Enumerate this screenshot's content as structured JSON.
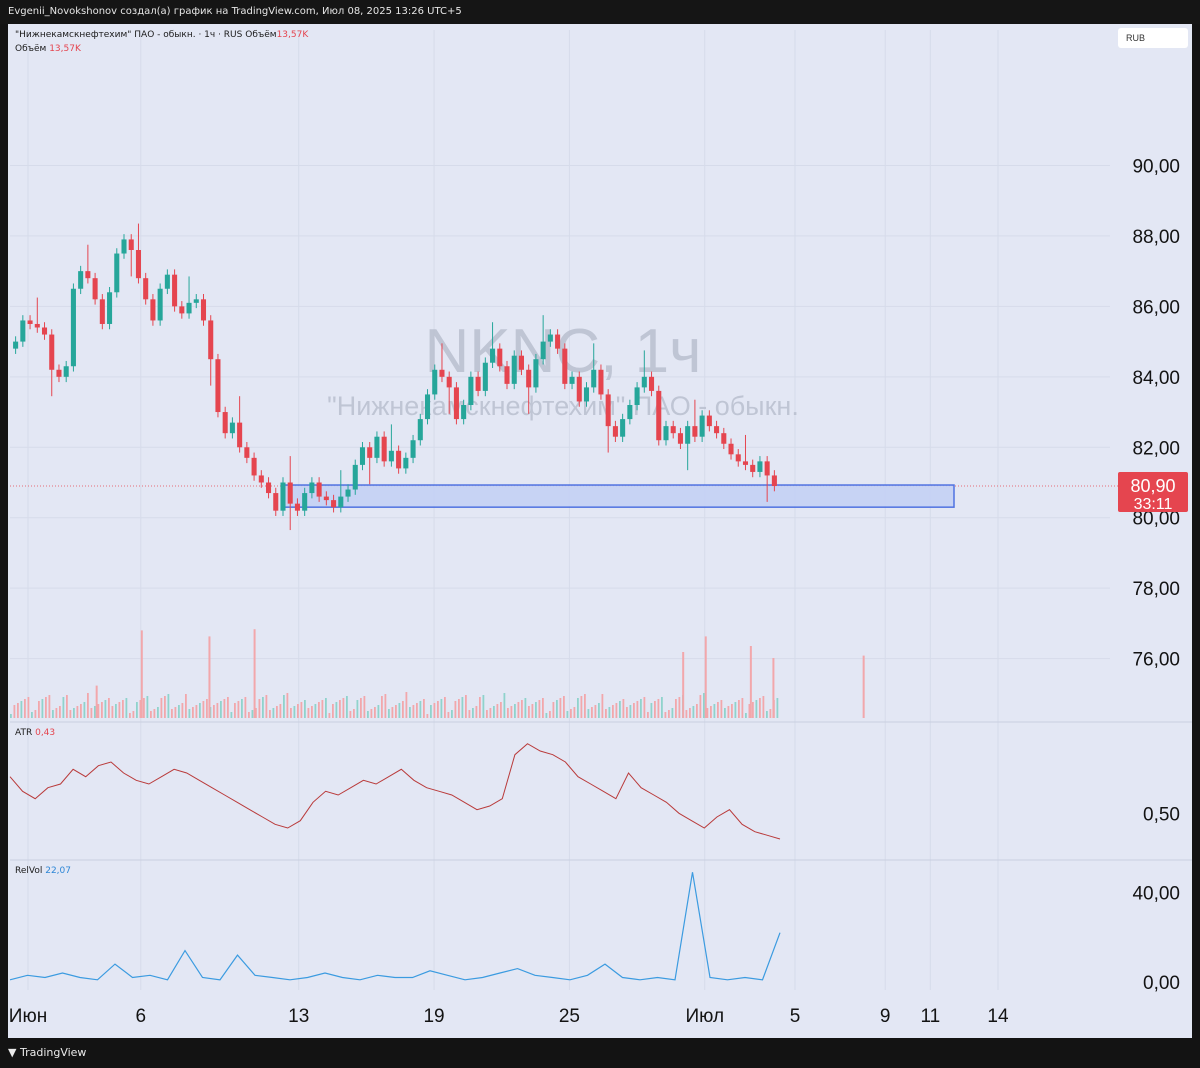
{
  "header": {
    "attribution": "Evgenii_Novokshonov создал(а) график на TradingView.com, Июл 08, 2025 13:26 UTC+5"
  },
  "legend": {
    "symbol_line": "\"Нижнекамскнефтехим\" ПАО - обыкн. · 1ч · RUS",
    "volume_label": "Объём",
    "volume_value": "13,57K",
    "volume_line_label": "Объём",
    "volume_line_value": "13,57K",
    "atr_label": "ATR",
    "atr_value": "0,43",
    "relvol_label": "RelVol",
    "relvol_value": "22,07"
  },
  "watermark": {
    "ticker": "NKNC, 1ч",
    "name": "\"Нижнекамскнефтехим\" ПАО - обыкн."
  },
  "currency": "RUB",
  "price_badge": {
    "price": "80,90",
    "countdown": "33:11"
  },
  "brand": "TradingView",
  "colors": {
    "up": "#26a69a",
    "down": "#e5454f",
    "atr": "#b93a3a",
    "relvol": "#3b9be0",
    "zone_fill": "#c5d1f5",
    "zone_stroke": "#3f66e0",
    "background": "#e3e7f4"
  },
  "chart_data": [
    {
      "type": "candlestick",
      "title": "NKNC, 1ч",
      "price_axis_ticks": [
        "76,00",
        "78,00",
        "80,00",
        "82,00",
        "84,00",
        "86,00",
        "88,00",
        "90,00"
      ],
      "time_axis_ticks": [
        "Июн",
        "6",
        "13",
        "19",
        "25",
        "Июл",
        "5",
        "9",
        "11",
        "14"
      ],
      "ylim": [
        74.4,
        92.0
      ],
      "last_price": 80.9,
      "price_path_close": [
        85.0,
        85.6,
        85.5,
        85.4,
        85.2,
        84.2,
        84.0,
        84.3,
        86.5,
        87.0,
        86.8,
        86.2,
        85.5,
        86.4,
        87.5,
        87.9,
        87.6,
        86.8,
        86.2,
        85.6,
        86.5,
        86.9,
        86.0,
        85.8,
        86.1,
        86.2,
        85.6,
        84.5,
        83.0,
        82.4,
        82.7,
        82.0,
        81.7,
        81.2,
        81.0,
        80.7,
        80.2,
        81.0,
        80.4,
        80.2,
        80.7,
        81.0,
        80.6,
        80.5,
        80.3,
        80.6,
        80.8,
        81.5,
        82.0,
        81.7,
        82.3,
        81.6,
        81.9,
        81.4,
        81.7,
        82.2,
        82.8,
        83.5,
        84.2,
        84.0,
        83.7,
        82.8,
        83.2,
        84.0,
        83.6,
        84.4,
        84.8,
        84.3,
        83.8,
        84.6,
        84.2,
        83.7,
        84.5,
        85.0,
        85.2,
        84.8,
        83.8,
        84.0,
        83.3,
        83.7,
        84.2,
        83.5,
        82.6,
        82.3,
        82.8,
        83.2,
        83.7,
        84.0,
        83.6,
        82.2,
        82.6,
        82.4,
        82.1,
        82.6,
        82.3,
        82.9,
        82.6,
        82.4,
        82.1,
        81.8,
        81.6,
        81.5,
        81.3,
        81.6,
        81.2,
        80.9
      ]
    },
    {
      "type": "bar",
      "title": "Объём",
      "last_value": "13,57K",
      "spikes": [
        {
          "time": "4 Июн",
          "relative_height": 0.27
        },
        {
          "time": "6 Июн",
          "relative_height": 0.73
        },
        {
          "time": "9 Июн",
          "relative_height": 0.68
        },
        {
          "time": "11 Июн",
          "relative_height": 0.74
        },
        {
          "time": "30 Июн",
          "relative_height": 0.55
        },
        {
          "time": "1 Июл",
          "relative_height": 0.68
        },
        {
          "time": "3 Июл",
          "relative_height": 0.6
        },
        {
          "time": "4 Июл",
          "relative_height": 0.5
        },
        {
          "time": "8 Июл",
          "relative_height": 0.52
        }
      ]
    },
    {
      "type": "line",
      "title": "ATR",
      "last_value": 0.43,
      "y_ticks": [
        "0,50"
      ],
      "values": [
        0.6,
        0.56,
        0.54,
        0.57,
        0.58,
        0.62,
        0.6,
        0.63,
        0.64,
        0.61,
        0.59,
        0.58,
        0.6,
        0.62,
        0.61,
        0.59,
        0.57,
        0.55,
        0.53,
        0.51,
        0.49,
        0.47,
        0.46,
        0.48,
        0.53,
        0.56,
        0.55,
        0.57,
        0.59,
        0.58,
        0.6,
        0.62,
        0.59,
        0.57,
        0.56,
        0.55,
        0.53,
        0.51,
        0.52,
        0.54,
        0.66,
        0.69,
        0.67,
        0.66,
        0.64,
        0.6,
        0.58,
        0.56,
        0.54,
        0.61,
        0.57,
        0.55,
        0.53,
        0.5,
        0.48,
        0.46,
        0.49,
        0.51,
        0.47,
        0.45,
        0.44,
        0.43
      ]
    },
    {
      "type": "line",
      "title": "RelVol",
      "last_value": 22.07,
      "y_ticks": [
        "0,00",
        "40,00"
      ],
      "values": [
        1,
        3,
        2,
        4,
        2,
        1,
        8,
        2,
        3,
        1,
        14,
        2,
        1,
        12,
        3,
        2,
        1,
        2,
        4,
        2,
        1,
        3,
        2,
        2,
        5,
        3,
        1,
        2,
        4,
        6,
        3,
        2,
        1,
        3,
        8,
        2,
        1,
        2,
        1,
        49,
        2,
        1,
        2,
        1,
        22
      ]
    }
  ]
}
